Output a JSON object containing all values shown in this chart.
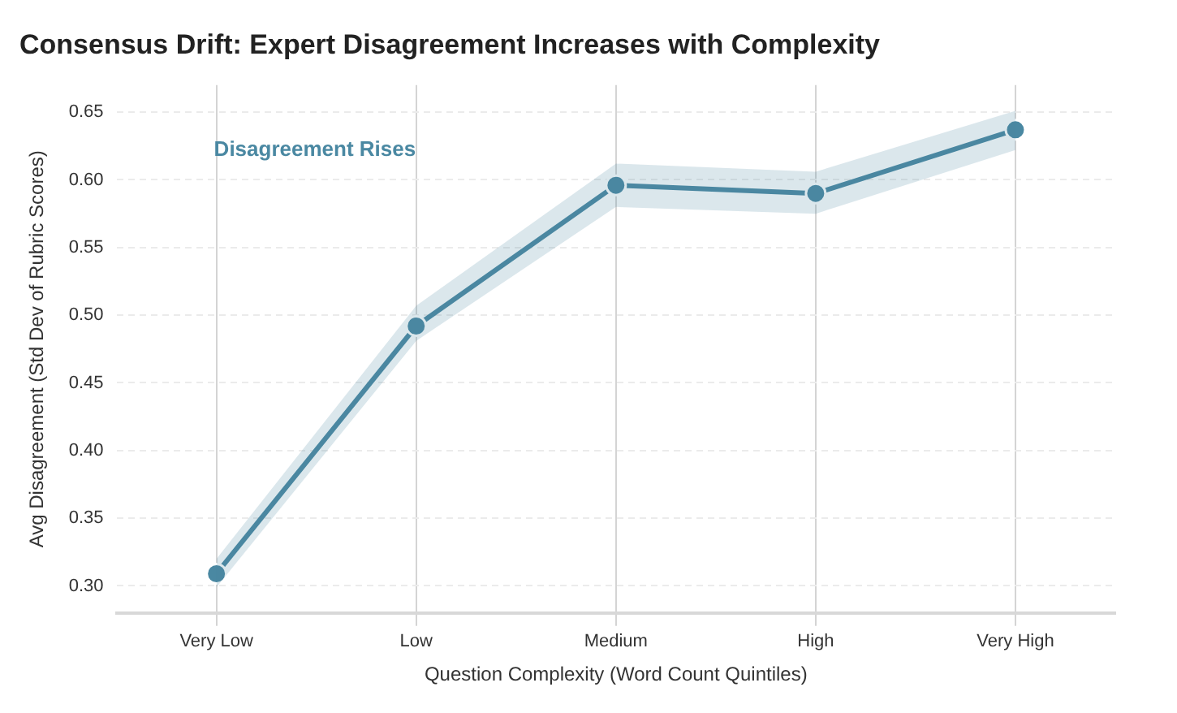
{
  "chart_data": {
    "type": "line",
    "title": "Consensus Drift: Expert Disagreement Increases with Complexity",
    "xlabel": "Question Complexity (Word Count Quintiles)",
    "ylabel": "Avg Disagreement (Std Dev of Rubric Scores)",
    "categories": [
      "Very Low",
      "Low",
      "Medium",
      "High",
      "Very High"
    ],
    "series": [
      {
        "color": "#4a88a2",
        "values": [
          0.309,
          0.492,
          0.596,
          0.59,
          0.637
        ],
        "lower": [
          0.299,
          0.481,
          0.58,
          0.575,
          0.622
        ],
        "upper": [
          0.32,
          0.507,
          0.612,
          0.606,
          0.651
        ]
      }
    ],
    "ylim": [
      0.28,
      0.67
    ],
    "yticks": [
      {
        "value": 0.3,
        "label": "0.30"
      },
      0.35,
      {
        "value": 0.4,
        "label": "0.40"
      },
      0.45,
      {
        "value": 0.5,
        "label": "0.50"
      },
      0.55,
      {
        "value": 0.6,
        "label": "0.60"
      },
      0.65
    ],
    "grid": true,
    "legend": false,
    "marker": "circle",
    "line_style": "solid",
    "annotations": [
      "Disagreement Rises"
    ]
  }
}
